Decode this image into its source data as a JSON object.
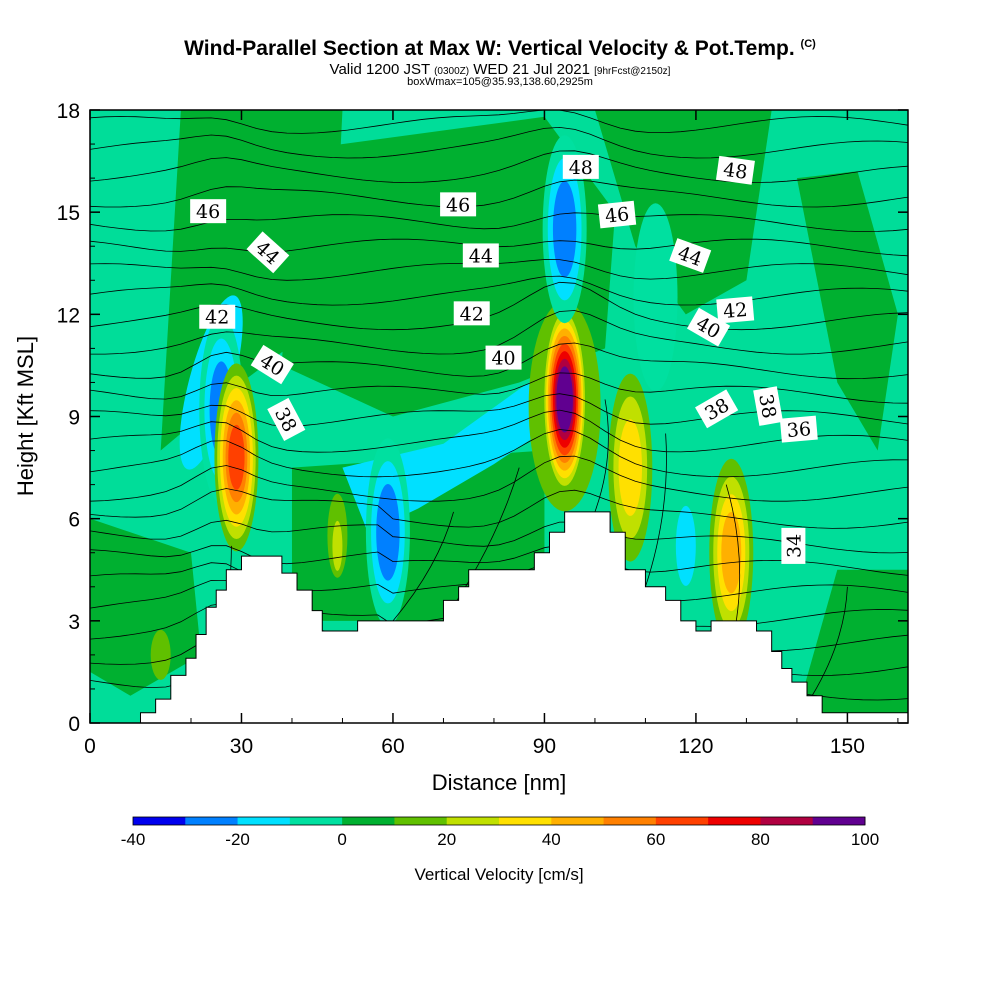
{
  "header": {
    "title": "Wind-Parallel Section at Max W: Vertical Velocity & Pot.Temp.",
    "title_mark": "(C)",
    "valid_a": "Valid 1200 JST",
    "valid_b": "(0300Z)",
    "valid_c": "WED 21 Jul 2021",
    "valid_d": "[9hrFcst@2150z]",
    "subline": "boxWmax=105@35.93,138.60,2925m"
  },
  "chart_data": {
    "type": "heatmap",
    "xlabel": "Distance [nm]",
    "ylabel": "Height [Kft MSL]",
    "xlim": [
      0,
      162
    ],
    "ylim": [
      0,
      18
    ],
    "xticks": [
      "0",
      "30",
      "60",
      "90",
      "120",
      "150"
    ],
    "yticks": [
      "0",
      "3",
      "6",
      "9",
      "12",
      "15",
      "18"
    ],
    "colorbar": {
      "label": "Vertical Velocity [cm/s]",
      "ticks": [
        "-40",
        "-20",
        "0",
        "20",
        "40",
        "60",
        "80",
        "100"
      ],
      "range": [
        -40,
        100
      ],
      "colors": [
        "#0000ee",
        "#0080ff",
        "#00e0ff",
        "#00e0a0",
        "#00b030",
        "#60c000",
        "#c0e000",
        "#ffe000",
        "#ffb000",
        "#ff8000",
        "#ff4000",
        "#ee0000",
        "#b00040",
        "#600090"
      ]
    },
    "theta_contour_labels": [
      "48",
      "48",
      "46",
      "46",
      "46",
      "44",
      "44",
      "44",
      "42",
      "42",
      "42",
      "40",
      "40",
      "40",
      "38",
      "38",
      "38",
      "36",
      "34"
    ],
    "terrain": [
      [
        0,
        0
      ],
      [
        10,
        0.3
      ],
      [
        13,
        0.7
      ],
      [
        16,
        1.4
      ],
      [
        19,
        1.9
      ],
      [
        21,
        2.6
      ],
      [
        23,
        3.4
      ],
      [
        25,
        3.9
      ],
      [
        27,
        4.5
      ],
      [
        30,
        4.9
      ],
      [
        35,
        4.9
      ],
      [
        38,
        4.4
      ],
      [
        41,
        3.9
      ],
      [
        44,
        3.3
      ],
      [
        46,
        2.7
      ],
      [
        51,
        2.7
      ],
      [
        53,
        3.0
      ],
      [
        68,
        3.0
      ],
      [
        70,
        3.6
      ],
      [
        73,
        4.0
      ],
      [
        75,
        4.5
      ],
      [
        84,
        4.5
      ],
      [
        88,
        5.0
      ],
      [
        91,
        5.6
      ],
      [
        94,
        6.2
      ],
      [
        100,
        6.2
      ],
      [
        103,
        5.6
      ],
      [
        106,
        4.5
      ],
      [
        110,
        4.0
      ],
      [
        114,
        3.6
      ],
      [
        117,
        3.0
      ],
      [
        120,
        2.7
      ],
      [
        123,
        3.0
      ],
      [
        129,
        3.0
      ],
      [
        132,
        2.7
      ],
      [
        135,
        2.1
      ],
      [
        137,
        1.6
      ],
      [
        139,
        1.2
      ],
      [
        142,
        0.8
      ],
      [
        145,
        0.3
      ],
      [
        162,
        0.3
      ]
    ],
    "w_features": [
      {
        "x": 26,
        "y": 9.2,
        "w": -35
      },
      {
        "x": 29,
        "y": 7.8,
        "w": 60
      },
      {
        "x": 59,
        "y": 5.6,
        "w": -30
      },
      {
        "x": 94,
        "y": 9.5,
        "w": 100
      },
      {
        "x": 94,
        "y": 14.5,
        "w": -30
      },
      {
        "x": 107,
        "y": 7.5,
        "w": 30
      },
      {
        "x": 112,
        "y": 12.5,
        "w": -15
      },
      {
        "x": 127,
        "y": 5.0,
        "w": 40
      }
    ]
  }
}
